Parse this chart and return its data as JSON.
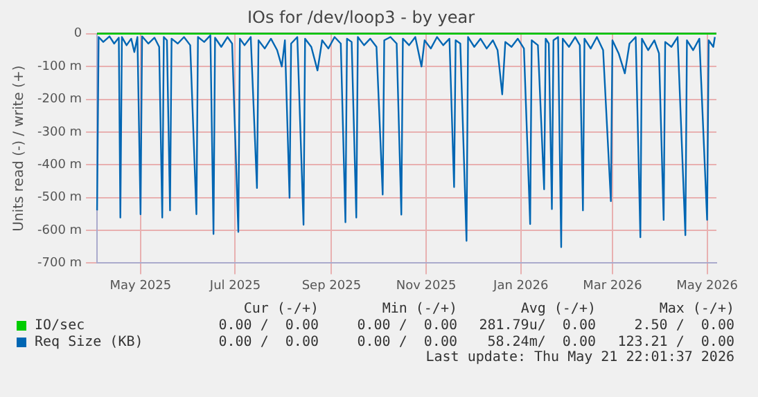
{
  "chart_data": {
    "type": "line",
    "title": "IOs for /dev/loop3 - by year",
    "ylabel": "Units read (-) / write (+)",
    "xlim": [
      "2025-04-18",
      "2026-05-22"
    ],
    "xticks": [
      {
        "value": "2025-05-16",
        "label": "May 2025"
      },
      {
        "value": "2025-07-16",
        "label": "Jul 2025"
      },
      {
        "value": "2025-09-16",
        "label": "Sep 2025"
      },
      {
        "value": "2025-11-16",
        "label": "Nov 2025"
      },
      {
        "value": "2026-01-16",
        "label": "Jan 2026"
      },
      {
        "value": "2026-03-16",
        "label": "Mar 2026"
      },
      {
        "value": "2026-05-16",
        "label": "May 2026"
      }
    ],
    "ylim": [
      -700,
      0
    ],
    "yticks": [
      {
        "value": -700,
        "label": "-700 m"
      },
      {
        "value": -600,
        "label": "-600 m"
      },
      {
        "value": -500,
        "label": "-500 m"
      },
      {
        "value": -400,
        "label": "-400 m"
      },
      {
        "value": -300,
        "label": "-300 m"
      },
      {
        "value": -200,
        "label": "-200 m"
      },
      {
        "value": -100,
        "label": "-100 m"
      },
      0
    ],
    "grid": true,
    "legend": "bottom",
    "marker": "none",
    "line_style": "solid",
    "ref_lines": [
      {
        "axis": "y",
        "value": 0,
        "color": "#000000"
      }
    ],
    "series": [
      {
        "name": "IO/sec",
        "color": "#00cc00",
        "x": [
          "2025-04-18",
          "2026-05-22"
        ],
        "values": [
          0,
          0
        ]
      },
      {
        "name": "Req Size (KB)",
        "color": "#0066b3",
        "x": [
          "2025-04-18",
          "2025-04-19",
          "2025-04-22",
          "2025-04-26",
          "2025-04-29",
          "2025-05-02",
          "2025-05-03",
          "2025-05-04",
          "2025-05-07",
          "2025-05-10",
          "2025-05-12",
          "2025-05-14",
          "2025-05-16",
          "2025-05-17",
          "2025-05-21",
          "2025-05-25",
          "2025-05-28",
          "2025-05-30",
          "2025-05-31",
          "2025-06-02",
          "2025-06-04",
          "2025-06-05",
          "2025-06-09",
          "2025-06-13",
          "2025-06-17",
          "2025-06-21",
          "2025-06-22",
          "2025-06-26",
          "2025-06-30",
          "2025-07-02",
          "2025-07-03",
          "2025-07-07",
          "2025-07-11",
          "2025-07-14",
          "2025-07-18",
          "2025-07-19",
          "2025-07-22",
          "2025-07-26",
          "2025-07-30",
          "2025-07-31",
          "2025-08-04",
          "2025-08-08",
          "2025-08-12",
          "2025-08-15",
          "2025-08-17",
          "2025-08-20",
          "2025-08-21",
          "2025-08-25",
          "2025-08-29",
          "2025-08-30",
          "2025-09-03",
          "2025-09-07",
          "2025-09-10",
          "2025-09-14",
          "2025-09-18",
          "2025-09-22",
          "2025-09-25",
          "2025-09-26",
          "2025-09-29",
          "2025-10-02",
          "2025-10-03",
          "2025-10-07",
          "2025-10-11",
          "2025-10-15",
          "2025-10-19",
          "2025-10-20",
          "2025-10-24",
          "2025-10-28",
          "2025-10-31",
          "2025-11-01",
          "2025-11-05",
          "2025-11-09",
          "2025-11-13",
          "2025-11-15",
          "2025-11-19",
          "2025-11-23",
          "2025-11-27",
          "2025-12-01",
          "2025-12-04",
          "2025-12-05",
          "2025-12-08",
          "2025-12-12",
          "2025-12-13",
          "2025-12-17",
          "2025-12-21",
          "2025-12-25",
          "2025-12-29",
          "2026-01-01",
          "2026-01-04",
          "2026-01-06",
          "2026-01-10",
          "2026-01-14",
          "2026-01-18",
          "2026-01-22",
          "2026-01-23",
          "2026-01-27",
          "2026-01-31",
          "2026-02-01",
          "2026-02-03",
          "2026-02-05",
          "2026-02-06",
          "2026-02-09",
          "2026-02-11",
          "2026-02-12",
          "2026-02-16",
          "2026-02-20",
          "2026-02-23",
          "2026-02-25",
          "2026-02-26",
          "2026-03-02",
          "2026-03-06",
          "2026-03-10",
          "2026-03-15",
          "2026-03-16",
          "2026-03-20",
          "2026-03-24",
          "2026-03-27",
          "2026-03-31",
          "2026-04-03",
          "2026-04-04",
          "2026-04-08",
          "2026-04-12",
          "2026-04-15",
          "2026-04-18",
          "2026-04-19",
          "2026-04-23",
          "2026-04-27",
          "2026-05-02",
          "2026-05-03",
          "2026-05-07",
          "2026-05-11",
          "2026-05-16",
          "2026-05-17",
          "2026-05-20",
          "2026-05-21"
        ],
        "values": [
          -539,
          -10,
          -25,
          -8,
          -30,
          -12,
          -561,
          -10,
          -35,
          -15,
          -56,
          -10,
          -551,
          -8,
          -30,
          -12,
          -40,
          -561,
          -10,
          -20,
          -539,
          -15,
          -30,
          -10,
          -35,
          -551,
          -10,
          -25,
          -5,
          -611,
          -12,
          -40,
          -10,
          -30,
          -605,
          -15,
          -35,
          -10,
          -471,
          -20,
          -45,
          -15,
          -50,
          -100,
          -20,
          -501,
          -30,
          -10,
          -583,
          -15,
          -40,
          -112,
          -20,
          -45,
          -10,
          -30,
          -575,
          -15,
          -25,
          -561,
          -10,
          -35,
          -15,
          -40,
          -491,
          -20,
          -10,
          -30,
          -552,
          -15,
          -35,
          -10,
          -100,
          -20,
          -45,
          -10,
          -35,
          -15,
          -468,
          -20,
          -30,
          -632,
          -10,
          -40,
          -15,
          -45,
          -20,
          -50,
          -185,
          -25,
          -40,
          -15,
          -45,
          -581,
          -20,
          -35,
          -475,
          -15,
          -30,
          -535,
          -20,
          -10,
          -651,
          -15,
          -40,
          -10,
          -35,
          -539,
          -15,
          -45,
          -10,
          -50,
          -511,
          -20,
          -60,
          -121,
          -30,
          -10,
          -621,
          -15,
          -50,
          -20,
          -60,
          -568,
          -25,
          -40,
          -10,
          -615,
          -20,
          -50,
          -15,
          -568,
          -20,
          -40,
          -10
        ]
      }
    ],
    "annotations": [
      "Cur (-/+)",
      "Min (-/+)",
      "Avg (-/+)",
      "Max (-/+)",
      "0.00 /  0.00",
      "0.00 /  0.00",
      "281.79u/  0.00",
      "2.50 /  0.00",
      "0.00 /  0.00",
      "0.00 /  0.00",
      "58.24m/  0.00",
      "123.21 /  0.00",
      "Last update: Thu May 21 22:01:37 2026"
    ]
  }
}
